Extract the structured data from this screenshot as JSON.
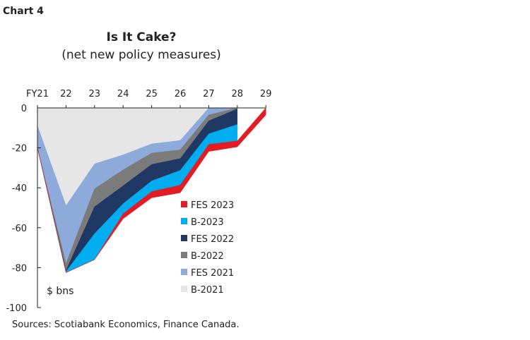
{
  "header": {
    "chart_label": "Chart 4",
    "sources": "Sources: Scotiabank Economics, Finance Canada."
  },
  "chart_data": {
    "type": "area",
    "stacked": true,
    "title": "Is It Cake?",
    "subtitle": "(net new policy measures)",
    "unit_label": "$ bns",
    "categories": [
      "FY21",
      "22",
      "23",
      "24",
      "25",
      "26",
      "27",
      "28",
      "29"
    ],
    "ylim": [
      -100,
      0
    ],
    "yticks": [
      0,
      -20,
      -40,
      -60,
      -80,
      -100
    ],
    "x_axis_position": "top",
    "grid": false,
    "legend_placement": "bottom-right",
    "series": [
      {
        "name": "B-2021",
        "color": "#e6e6e6",
        "values": [
          -9,
          -49,
          -28,
          -23.5,
          -18,
          -16.3,
          0,
          0,
          null
        ]
      },
      {
        "name": "FES 2021",
        "color": "#8eaadb",
        "values": [
          -11,
          -29,
          -12.5,
          -7.5,
          -4.6,
          -4.7,
          -3.5,
          0,
          null
        ]
      },
      {
        "name": "B-2022",
        "color": "#7b7b7b",
        "values": [
          0,
          -3.5,
          -9,
          -8,
          -5.7,
          -4.4,
          -3,
          -0.5,
          null
        ]
      },
      {
        "name": "FES 2022",
        "color": "#1f3864",
        "values": [
          0,
          -0.5,
          -13.5,
          -9,
          -8.3,
          -5.9,
          -6.5,
          -7.8,
          null
        ]
      },
      {
        "name": "B-2023",
        "color": "#00aeef",
        "values": [
          0,
          -0.5,
          -13,
          -5,
          -5.3,
          -7.4,
          -5.3,
          -8.2,
          null
        ]
      },
      {
        "name": "FES 2023",
        "color": "#e31b23",
        "values": [
          0,
          0,
          0,
          -2.5,
          -3.1,
          -3.8,
          -3.5,
          -3,
          -3.5
        ]
      }
    ],
    "legend_order": [
      "FES 2023",
      "B-2023",
      "FES 2022",
      "B-2022",
      "FES 2021",
      "B-2021"
    ]
  }
}
